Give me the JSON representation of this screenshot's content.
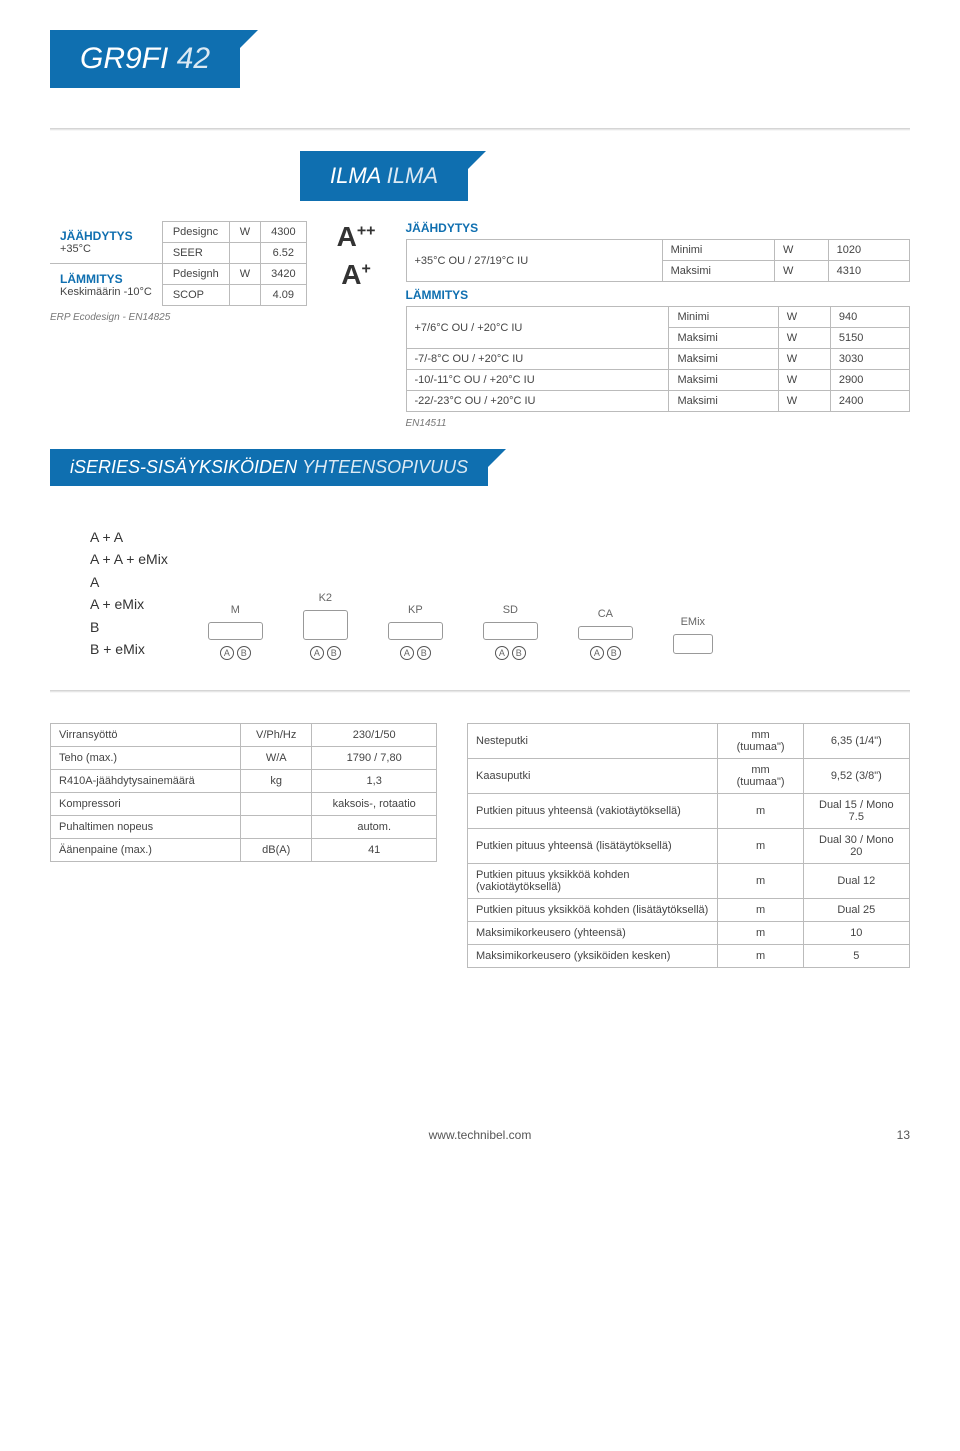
{
  "title": {
    "main": "GR9FI",
    "num": "42"
  },
  "sub_banner": {
    "a": "ILMA",
    "b": "ILMA"
  },
  "section_banner": {
    "a": "iSERIES-SISÄYKSIKÖIDEN",
    "b": "YHTEENSOPIVUUS"
  },
  "erp": {
    "cool_hdr": "JÄÄHDYTYS",
    "cool_sub": "+35°C",
    "heat_hdr": "LÄMMITYS",
    "heat_sub": "Keskimäärin -10°C",
    "note": "ERP Ecodesign - EN14825",
    "rows": [
      [
        "Pdesignc",
        "W",
        "4300"
      ],
      [
        "SEER",
        "",
        "6.52"
      ],
      [
        "Pdesignh",
        "W",
        "3420"
      ],
      [
        "SCOP",
        "",
        "4.09"
      ]
    ]
  },
  "ratings": {
    "a": "A++",
    "b": "A+"
  },
  "cond": {
    "cool_hdr": "JÄÄHDYTYS",
    "heat_hdr": "LÄMMITYS",
    "note": "EN14511",
    "rows": [
      [
        "+35°C OU / 27/19°C IU",
        "Minimi",
        "W",
        "1020"
      ],
      [
        "",
        "Maksimi",
        "W",
        "4310"
      ],
      [
        "+7/6°C OU / +20°C IU",
        "Minimi",
        "W",
        "940"
      ],
      [
        "",
        "Maksimi",
        "W",
        "5150"
      ],
      [
        "-7/-8°C OU / +20°C IU",
        "Maksimi",
        "W",
        "3030"
      ],
      [
        "-10/-11°C OU / +20°C IU",
        "Maksimi",
        "W",
        "2900"
      ],
      [
        "-22/-23°C OU / +20°C IU",
        "Maksimi",
        "W",
        "2400"
      ]
    ]
  },
  "compat_list": [
    "A + A",
    "A + A + eMix",
    "A",
    "A + eMix",
    "B",
    "B + eMix"
  ],
  "units": [
    {
      "lbl": "M",
      "shape": "unit-shape",
      "ab": true
    },
    {
      "lbl": "K2",
      "shape": "unit-shape tall",
      "ab": true
    },
    {
      "lbl": "KP",
      "shape": "unit-shape",
      "ab": true
    },
    {
      "lbl": "SD",
      "shape": "unit-shape",
      "ab": true
    },
    {
      "lbl": "CA",
      "shape": "unit-shape low",
      "ab": true
    },
    {
      "lbl": "EMix",
      "shape": "unit-shape box",
      "ab": false
    }
  ],
  "ab_label": {
    "a": "A",
    "b": "B"
  },
  "left_table": [
    [
      "Virransyöttö",
      "V/Ph/Hz",
      "230/1/50"
    ],
    [
      "Teho (max.)",
      "W/A",
      "1790 / 7,80"
    ],
    [
      "R410A-jäähdytysainemäärä",
      "kg",
      "1,3"
    ],
    [
      "Kompressori",
      "",
      "kaksois-, rotaatio"
    ],
    [
      "Puhaltimen nopeus",
      "",
      "autom."
    ],
    [
      "Äänenpaine (max.)",
      "dB(A)",
      "41"
    ]
  ],
  "right_table": [
    [
      "Nesteputki",
      "mm (tuumaa\")",
      "6,35 (1/4\")"
    ],
    [
      "Kaasuputki",
      "mm (tuumaa\")",
      "9,52 (3/8\")"
    ],
    [
      "Putkien pituus yhteensä (vakiotäytöksellä)",
      "m",
      "Dual 15 / Mono 7.5"
    ],
    [
      "Putkien pituus yhteensä (lisätäytöksellä)",
      "m",
      "Dual 30 / Mono 20"
    ],
    [
      "Putkien pituus yksikköä kohden (vakiotäytöksellä)",
      "m",
      "Dual 12"
    ],
    [
      "Putkien pituus yksikköä kohden (lisätäytöksellä)",
      "m",
      "Dual 25"
    ],
    [
      "Maksimikorkeusero (yhteensä)",
      "m",
      "10"
    ],
    [
      "Maksimikorkeusero (yksiköiden kesken)",
      "m",
      "5"
    ]
  ],
  "footer": {
    "url": "www.technibel.com",
    "page": "13"
  },
  "colors": {
    "brand": "#0f6fb0",
    "border": "#bbbbbb",
    "text": "#444444"
  }
}
